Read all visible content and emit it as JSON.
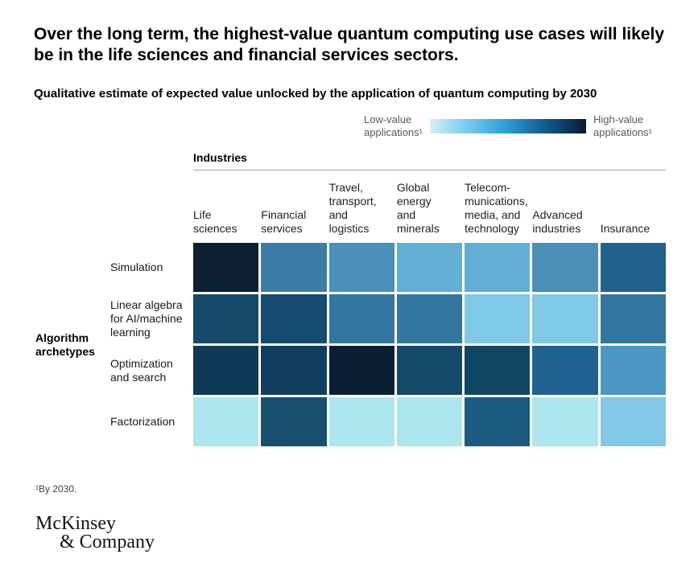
{
  "title": "Over the long term, the highest-value quantum computing use cases will likely be in the life sciences and financial services sectors.",
  "subtitle": "Qualitative estimate of expected value unlocked by the application of quantum computing by 2030",
  "legend": {
    "low_label": "Low-value\napplications¹",
    "high_label": "High-value\napplications¹",
    "gradient_low_color": "#d4f0f7",
    "gradient_mid_color": "#2d9fd8",
    "gradient_high_color": "#0a1c2e"
  },
  "footnote": "¹By 2030.",
  "logo": {
    "line1": "McKinsey",
    "line2": "& Company"
  },
  "chart_data": {
    "type": "heatmap",
    "title": "Qualitative estimate of expected value unlocked by the application of quantum computing by 2030",
    "column_group_label": "Industries",
    "row_group_label": "Algorithm\narchetypes",
    "columns": [
      "Life sciences",
      "Financial services",
      "Travel, transport, and logistics",
      "Global energy and minerals",
      "Telecommunications, media, and technology",
      "Advanced industries",
      "Insurance"
    ],
    "column_labels": [
      "Life\nsciences",
      "Financial\nservices",
      "Travel,\ntransport,\nand\nlogistics",
      "Global\nenergy\nand\nminerals",
      "Telecom-\nmunications,\nmedia, and\ntechnology",
      "Advanced\nindustries",
      "Insurance"
    ],
    "rows": [
      "Simulation",
      "Linear algebra for AI/machine learning",
      "Optimization and search",
      "Factorization"
    ],
    "value_scale": {
      "low": "Low-value applications (by 2030)",
      "high": "High-value applications (by 2030)",
      "range": [
        0,
        1
      ]
    },
    "values": [
      [
        1.0,
        0.5,
        0.45,
        0.3,
        0.3,
        0.45,
        0.68
      ],
      [
        0.8,
        0.8,
        0.55,
        0.55,
        0.2,
        0.2,
        0.55
      ],
      [
        0.88,
        0.85,
        0.98,
        0.78,
        0.8,
        0.68,
        0.4
      ],
      [
        0.08,
        0.78,
        0.08,
        0.08,
        0.72,
        0.08,
        0.2
      ]
    ],
    "cell_colors": [
      [
        "#0d2031",
        "#3b7da7",
        "#4a90b8",
        "#63aed4",
        "#63aed4",
        "#4a8fb5",
        "#21618c"
      ],
      [
        "#17496b",
        "#164a6e",
        "#33769f",
        "#33769f",
        "#7fc8e6",
        "#7fc8e6",
        "#33769f"
      ],
      [
        "#0e3a57",
        "#0f3e5e",
        "#0b1f33",
        "#14496b",
        "#124764",
        "#206292",
        "#4b96c2"
      ],
      [
        "#aee6ee",
        "#16506e",
        "#aee6ee",
        "#aee6ee",
        "#1d5a80",
        "#aee6ee",
        "#82c8e6"
      ]
    ]
  }
}
